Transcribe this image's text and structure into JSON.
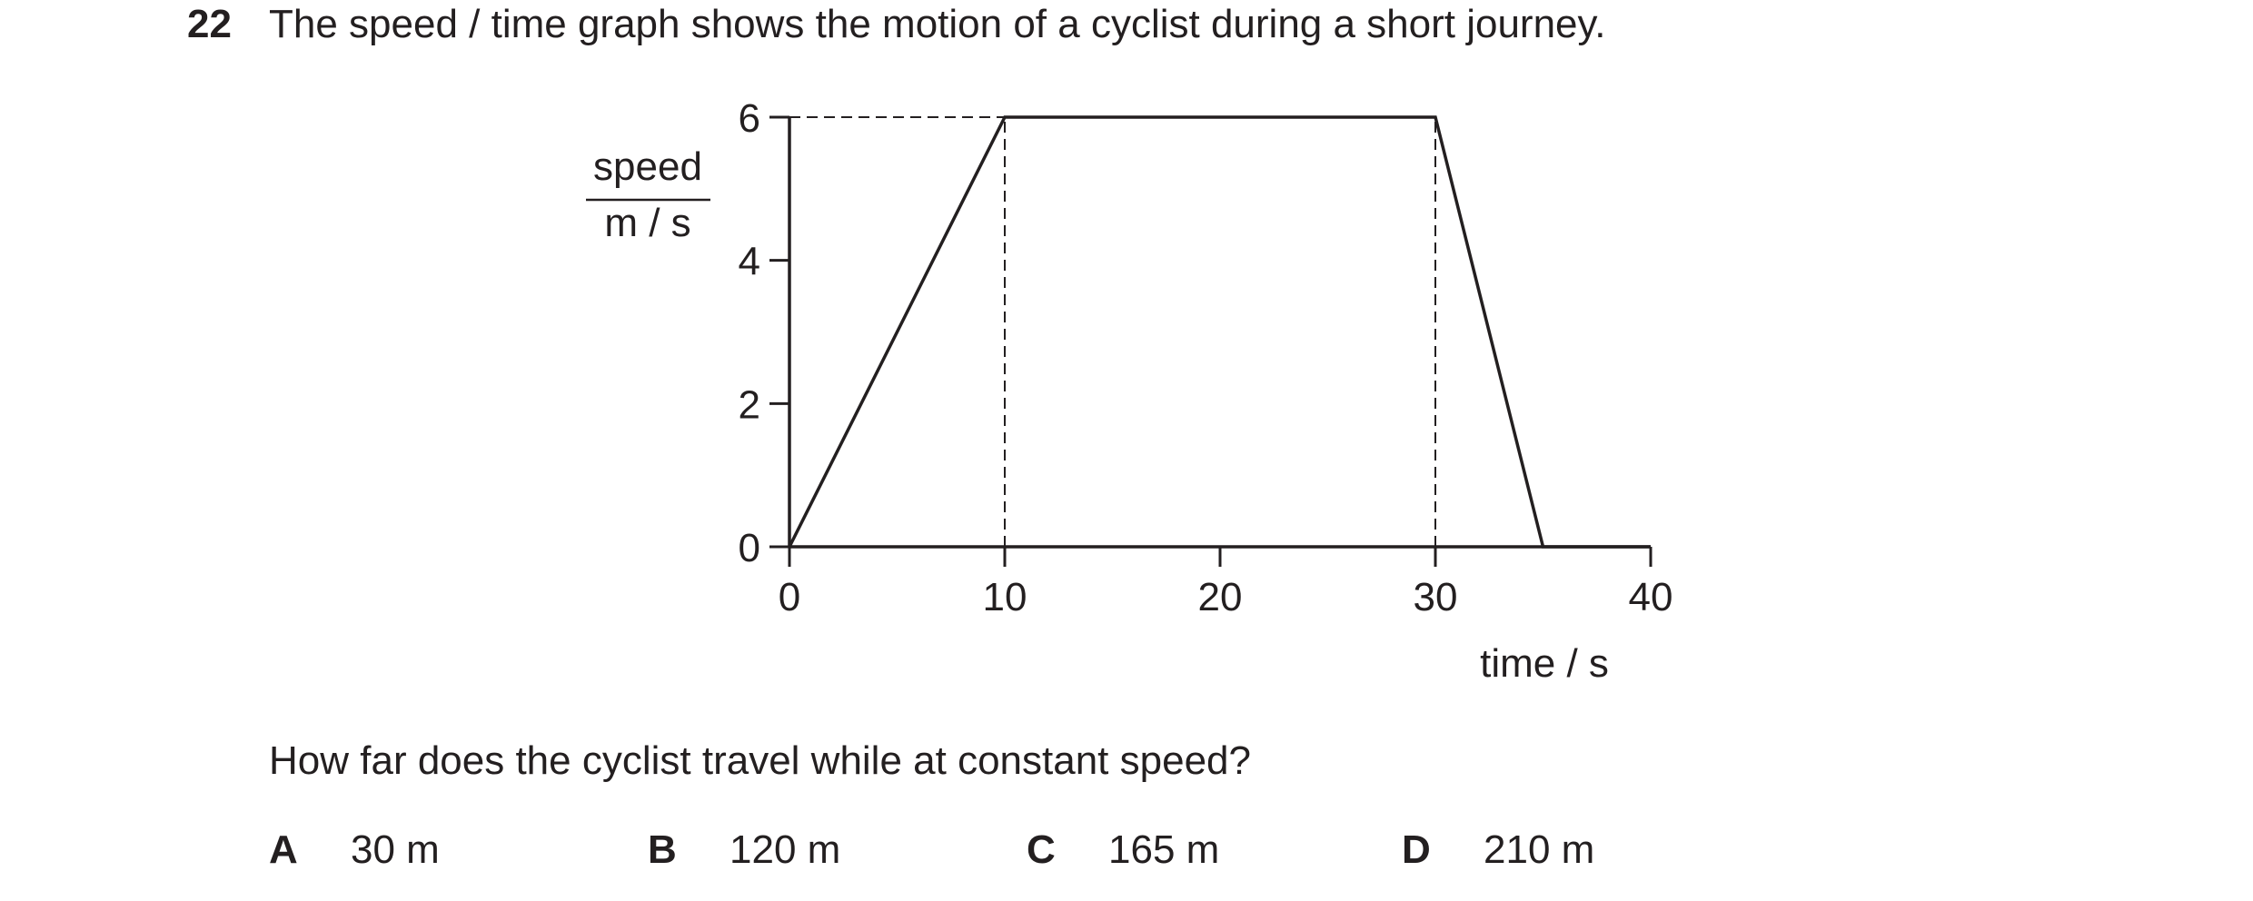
{
  "question": {
    "number": "22",
    "text": "The speed / time graph shows the motion of a cyclist during a short journey.",
    "subquestion": "How far does the cyclist travel while at constant speed?"
  },
  "options": [
    {
      "letter": "A",
      "value": "30 m"
    },
    {
      "letter": "B",
      "value": "120 m"
    },
    {
      "letter": "C",
      "value": "165 m"
    },
    {
      "letter": "D",
      "value": "210 m"
    }
  ],
  "chart_data": {
    "type": "line",
    "ylabel_top": "speed",
    "ylabel_bottom": "m / s",
    "xlabel": "time / s",
    "xlim": [
      0,
      40
    ],
    "ylim": [
      0,
      6
    ],
    "x_ticks": [
      0,
      10,
      20,
      30,
      40
    ],
    "y_ticks": [
      0,
      2,
      4,
      6
    ],
    "grid": false,
    "series": [
      {
        "x": [
          0,
          10,
          30,
          35,
          40
        ],
        "y": [
          0,
          6,
          6,
          0,
          0
        ]
      }
    ],
    "dashed_guides": [
      {
        "from": [
          0,
          6
        ],
        "to": [
          10,
          6
        ]
      },
      {
        "from": [
          10,
          0
        ],
        "to": [
          10,
          6
        ]
      },
      {
        "from": [
          30,
          0
        ],
        "to": [
          30,
          6
        ]
      }
    ],
    "line_color": "#231f20"
  }
}
